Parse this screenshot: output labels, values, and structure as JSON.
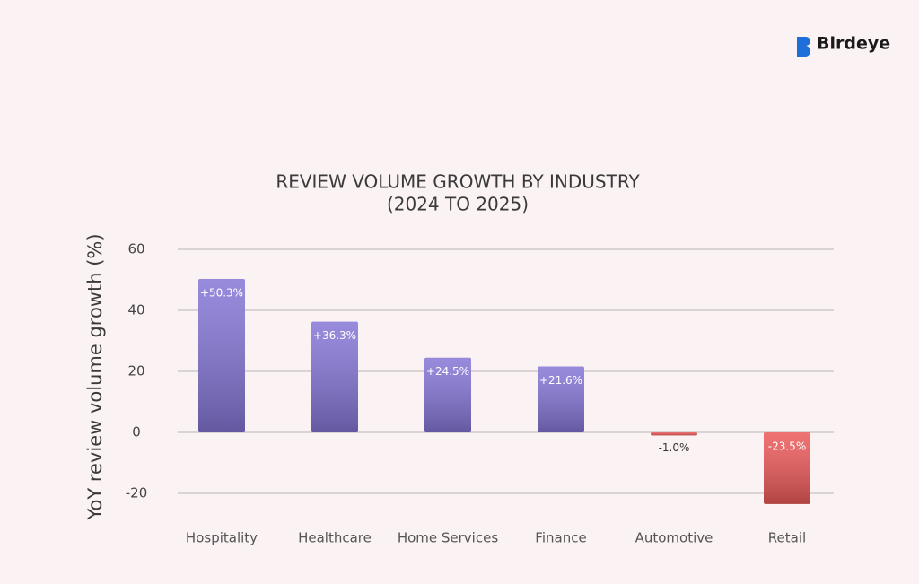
{
  "brand": "Birdeye",
  "chart_data": {
    "type": "bar",
    "title": "REVIEW VOLUME GROWTH BY INDUSTRY",
    "subtitle": "(2024 TO 2025)",
    "y_label": "YoY review volume growth (%)",
    "categories": [
      "Hospitality",
      "Healthcare",
      "Home Services",
      "Finance",
      "Automotive",
      "Retail"
    ],
    "values": [
      50.3,
      36.3,
      24.5,
      21.6,
      -1.0,
      -23.5
    ],
    "value_labels": [
      "+50.3%",
      "+36.3%",
      "+24.5%",
      "+21.6%",
      "-1.0%",
      "-23.5%"
    ],
    "colors": [
      "#8576d6",
      "#8576d6",
      "#8576d6",
      "#8576d6",
      "#ec5a5a",
      "#ec5a5a"
    ],
    "ylim": [
      -25,
      62
    ],
    "yticks": [
      -20,
      0,
      20,
      40,
      60
    ],
    "grid": true
  }
}
